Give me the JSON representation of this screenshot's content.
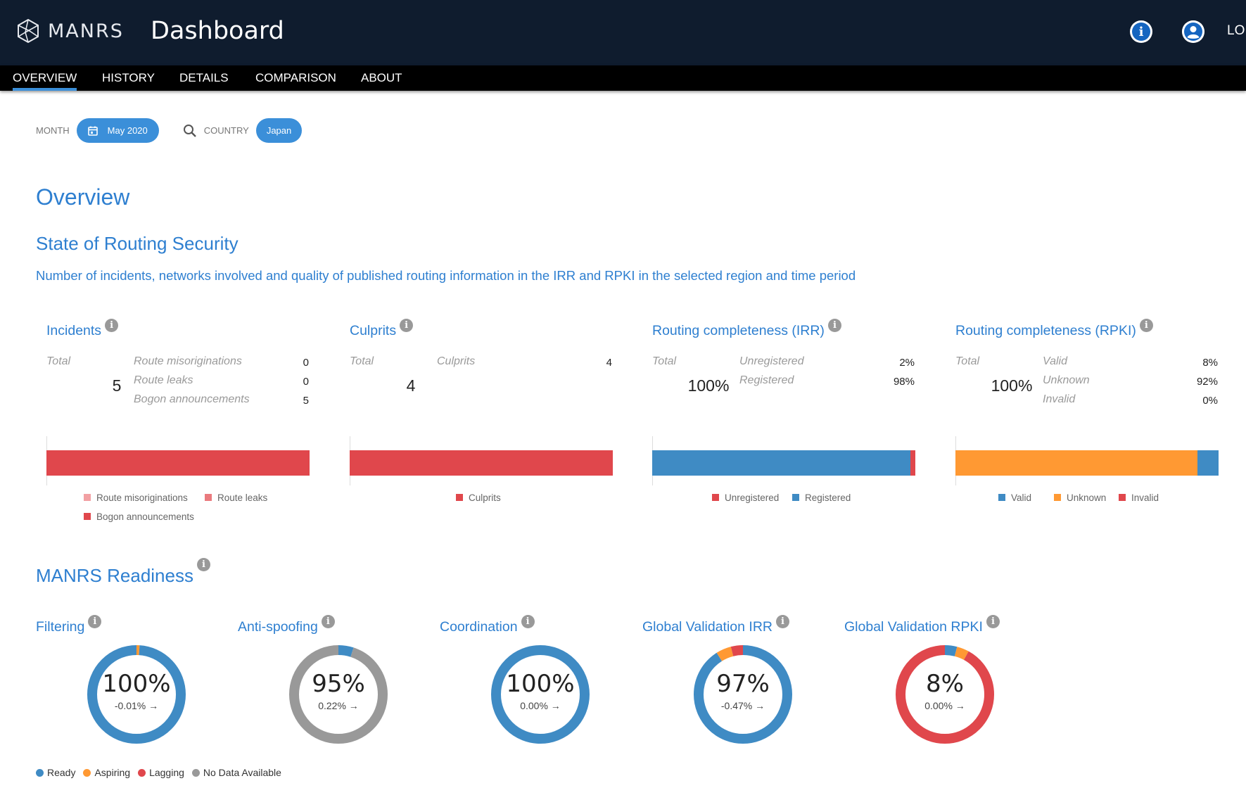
{
  "header": {
    "brand": "MANRS",
    "title": "Dashboard",
    "login_label": "LO"
  },
  "nav": {
    "tabs": [
      {
        "label": "OVERVIEW",
        "active": true
      },
      {
        "label": "HISTORY",
        "active": false
      },
      {
        "label": "DETAILS",
        "active": false
      },
      {
        "label": "COMPARISON",
        "active": false
      },
      {
        "label": "ABOUT",
        "active": false
      }
    ]
  },
  "filters": {
    "month_label": "MONTH",
    "month_value": "May 2020",
    "country_label": "COUNTRY",
    "country_value": "Japan"
  },
  "overview": {
    "heading": "Overview",
    "section_title": "State of Routing Security",
    "section_desc": "Number of incidents, networks involved and quality of published routing information in the IRR and RPKI in the selected region and time period"
  },
  "colors": {
    "accent": "#2e7fd0",
    "red": "#e0474c",
    "blue": "#3f8bc4",
    "orange": "#ff9933",
    "grey": "#999999",
    "pink": "#f2a0a3",
    "salmon": "#ea7a7e",
    "nav_bg": "#000000",
    "header_bg": "#0f1c2e"
  },
  "cards": {
    "incidents": {
      "title": "Incidents",
      "total_label": "Total",
      "total_value": "5",
      "rows": [
        {
          "label": "Route misoriginations",
          "value": "0"
        },
        {
          "label": "Route leaks",
          "value": "0"
        },
        {
          "label": "Bogon announcements",
          "value": "5"
        }
      ],
      "bar": [
        {
          "name": "Route misoriginations",
          "share": 0,
          "color": "#f2a0a3"
        },
        {
          "name": "Route leaks",
          "share": 0,
          "color": "#ea7a7e"
        },
        {
          "name": "Bogon announcements",
          "share": 1,
          "color": "#e0474c"
        }
      ],
      "legend": [
        "Route misoriginations",
        "Route leaks",
        "Bogon announcements"
      ]
    },
    "culprits": {
      "title": "Culprits",
      "total_label": "Total",
      "total_value": "4",
      "rows": [
        {
          "label": "Culprits",
          "value": "4"
        }
      ],
      "bar": [
        {
          "name": "Culprits",
          "share": 1,
          "color": "#e0474c"
        }
      ],
      "legend": [
        "Culprits"
      ]
    },
    "irr": {
      "title": "Routing completeness (IRR)",
      "total_label": "Total",
      "total_value": "100%",
      "rows": [
        {
          "label": "Unregistered",
          "value": "2%"
        },
        {
          "label": "Registered",
          "value": "98%"
        }
      ],
      "bar": [
        {
          "name": "Registered",
          "share": 0.98,
          "color": "#3f8bc4"
        },
        {
          "name": "Unregistered",
          "share": 0.02,
          "color": "#e0474c"
        }
      ],
      "legend": [
        "Unregistered",
        "Registered"
      ]
    },
    "rpki": {
      "title": "Routing completeness (RPKI)",
      "total_label": "Total",
      "total_value": "100%",
      "rows": [
        {
          "label": "Valid",
          "value": "8%"
        },
        {
          "label": "Unknown",
          "value": "92%"
        },
        {
          "label": "Invalid",
          "value": "0%"
        }
      ],
      "bar": [
        {
          "name": "Unknown",
          "share": 0.92,
          "color": "#ff9933"
        },
        {
          "name": "Valid",
          "share": 0.08,
          "color": "#3f8bc4"
        }
      ],
      "legend": [
        "Valid",
        "Unknown",
        "Invalid"
      ]
    }
  },
  "readiness": {
    "title": "MANRS Readiness",
    "items": [
      {
        "title": "Filtering",
        "pct": "100%",
        "change": "-0.01%",
        "segments": [
          {
            "color": "#ff9933",
            "share": 0.01
          },
          {
            "color": "#3f8bc4",
            "share": 0.99
          }
        ]
      },
      {
        "title": "Anti-spoofing",
        "pct": "95%",
        "change": "0.22%",
        "segments": [
          {
            "color": "#3f8bc4",
            "share": 0.05
          },
          {
            "color": "#999999",
            "share": 0.95
          }
        ]
      },
      {
        "title": "Coordination",
        "pct": "100%",
        "change": "0.00%",
        "segments": [
          {
            "color": "#3f8bc4",
            "share": 1
          }
        ]
      },
      {
        "title": "Global Validation IRR",
        "pct": "97%",
        "change": "-0.47%",
        "segments": [
          {
            "color": "#3f8bc4",
            "share": 0.91
          },
          {
            "color": "#ff9933",
            "share": 0.05
          },
          {
            "color": "#e0474c",
            "share": 0.04
          }
        ]
      },
      {
        "title": "Global Validation RPKI",
        "pct": "8%",
        "change": "0.00%",
        "segments": [
          {
            "color": "#3f8bc4",
            "share": 0.04
          },
          {
            "color": "#ff9933",
            "share": 0.04
          },
          {
            "color": "#e0474c",
            "share": 0.92
          }
        ]
      }
    ],
    "legend": [
      {
        "label": "Ready",
        "color": "#3f8bc4"
      },
      {
        "label": "Aspiring",
        "color": "#ff9933"
      },
      {
        "label": "Lagging",
        "color": "#e0474c"
      },
      {
        "label": "No Data Available",
        "color": "#999999"
      }
    ]
  }
}
